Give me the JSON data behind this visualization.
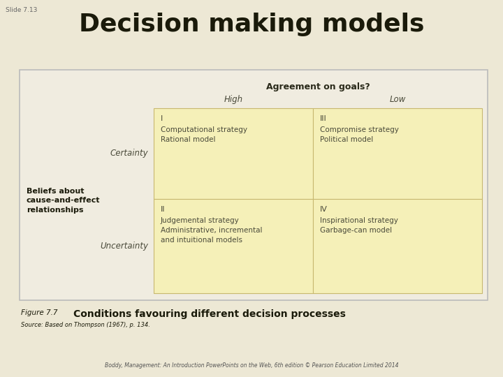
{
  "bg_color": "#ede8d5",
  "slide_label": "Slide 7.13",
  "title": "Decision making models",
  "title_fontsize": 26,
  "outer_box_facecolor": "#f0ece0",
  "outer_box_edgecolor": "#bbbbbb",
  "cell_facecolor": "#f5f0b8",
  "cell_edgecolor": "#c8b870",
  "header_label": "Agreement on goals?",
  "col_labels": [
    "High",
    "Low"
  ],
  "row_labels": [
    "Certainty",
    "Uncertainty"
  ],
  "left_axis_label_bold": "Beliefs about\ncause-and-effect\nrelationships",
  "cells": [
    {
      "roman": "I",
      "lines": [
        "Computational strategy",
        "Rational model"
      ]
    },
    {
      "roman": "III",
      "lines": [
        "Compromise strategy",
        "Political model"
      ]
    },
    {
      "roman": "II",
      "lines": [
        "Judgemental strategy",
        "Administrative, incremental",
        "and intuitional models"
      ]
    },
    {
      "roman": "IV",
      "lines": [
        "Inspirational strategy",
        "Garbage-can model"
      ]
    }
  ],
  "figure_prefix": "Figure 7.7",
  "figure_title": "Conditions favouring different decision processes",
  "source_text": "Source: Based on Thompson (1967), p. 134.",
  "footer_text": "Boddy, Management: An Introduction PowerPoints on the Web, 6th edition © Pearson Education Limited 2014",
  "cell_text_color": "#4a4a3a",
  "label_italic_color": "#4a4a3a",
  "header_bold_color": "#2a2a1a",
  "beliefs_color": "#1a1a0a"
}
